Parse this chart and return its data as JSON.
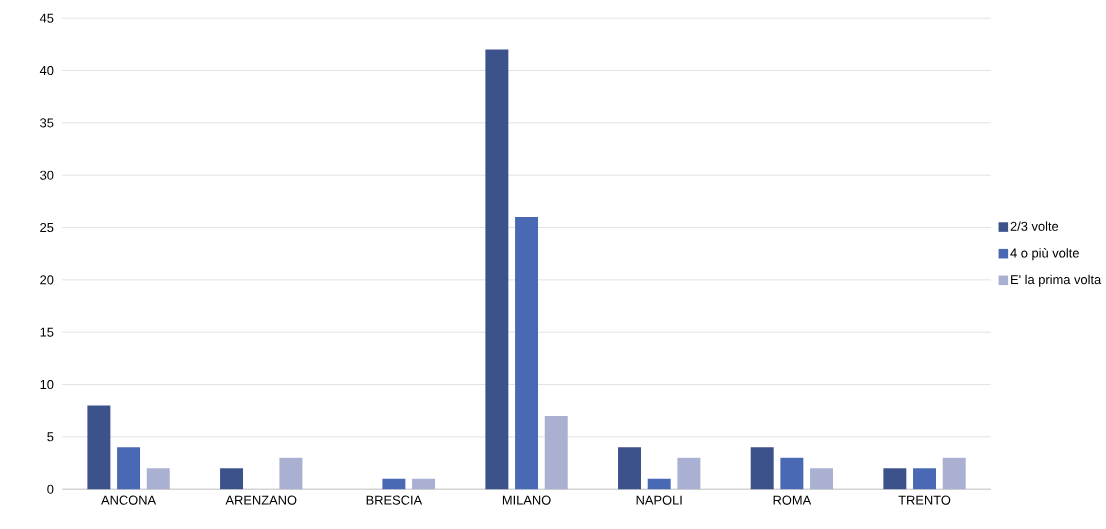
{
  "chart_data": {
    "type": "bar",
    "categories": [
      "ANCONA",
      "ARENZANO",
      "BRESCIA",
      "MILANO",
      "NAPOLI",
      "ROMA",
      "TRENTO"
    ],
    "series": [
      {
        "name": "2/3 volte",
        "color": "#3c528a",
        "values": [
          8,
          2,
          0,
          42,
          4,
          4,
          2
        ]
      },
      {
        "name": "4 o più volte",
        "color": "#4a69b4",
        "values": [
          4,
          0,
          1,
          26,
          1,
          3,
          2
        ]
      },
      {
        "name": "E' la prima volta",
        "color": "#a9b0d1",
        "values": [
          2,
          3,
          1,
          7,
          3,
          2,
          3
        ]
      }
    ],
    "ylim": [
      0,
      45
    ],
    "yticks": [
      0,
      5,
      10,
      15,
      20,
      25,
      30,
      35,
      40,
      45
    ],
    "grid": "y",
    "legend": "right"
  }
}
